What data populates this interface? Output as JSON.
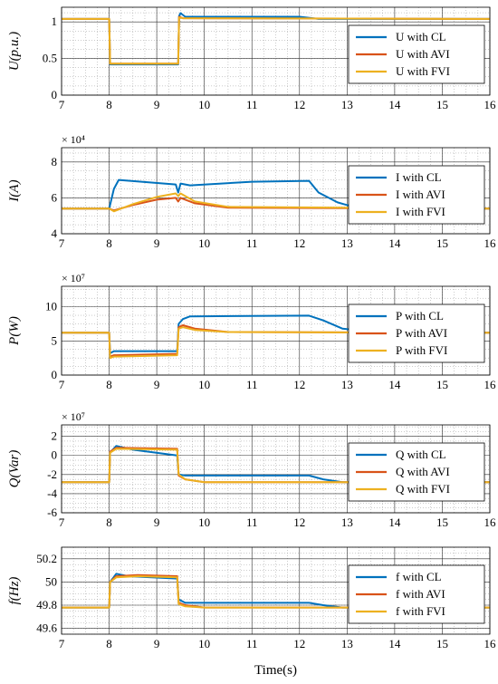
{
  "colors": {
    "CL": "#0072BD",
    "AVI": "#D95319",
    "FVI": "#EDB120"
  },
  "xlabel": "Time(s)",
  "chart_data": [
    {
      "type": "line",
      "ylabel": "U(p.u.)",
      "multiplier": "",
      "xlim": [
        7,
        16
      ],
      "ylim": [
        0,
        1.2
      ],
      "yticks": [
        0,
        0.5,
        1
      ],
      "yticklabels": [
        "0",
        "0.5",
        "1"
      ],
      "legend_position": "right",
      "series": [
        {
          "name": "U with CL",
          "color_key": "CL",
          "x": [
            7,
            8,
            8.02,
            9.45,
            9.47,
            9.5,
            9.6,
            12.0,
            12.4,
            16
          ],
          "y": [
            1.04,
            1.04,
            0.42,
            0.42,
            1.08,
            1.12,
            1.07,
            1.07,
            1.04,
            1.04
          ]
        },
        {
          "name": "U with AVI",
          "color_key": "AVI",
          "x": [
            7,
            8,
            8.02,
            9.45,
            9.47,
            9.55,
            16
          ],
          "y": [
            1.04,
            1.04,
            0.43,
            0.43,
            1.07,
            1.05,
            1.04
          ]
        },
        {
          "name": "U with FVI",
          "color_key": "FVI",
          "x": [
            7,
            8,
            8.02,
            9.45,
            9.47,
            9.55,
            16
          ],
          "y": [
            1.04,
            1.04,
            0.43,
            0.43,
            1.06,
            1.05,
            1.04
          ]
        }
      ]
    },
    {
      "type": "line",
      "ylabel": "I(A)",
      "multiplier": "× 10⁴",
      "xlim": [
        7,
        16
      ],
      "ylim": [
        4,
        8.8
      ],
      "yticks": [
        4,
        6,
        8
      ],
      "yticklabels": [
        "4",
        "6",
        "8"
      ],
      "legend_position": "right",
      "series": [
        {
          "name": "I with CL",
          "color_key": "CL",
          "x": [
            7,
            8,
            8.1,
            8.2,
            9.4,
            9.45,
            9.5,
            9.7,
            11.0,
            12.2,
            12.4,
            12.8,
            13.2,
            16
          ],
          "y": [
            5.4,
            5.4,
            6.5,
            7.0,
            6.75,
            6.3,
            6.8,
            6.7,
            6.9,
            6.95,
            6.3,
            5.75,
            5.45,
            5.4
          ]
        },
        {
          "name": "I with AVI",
          "color_key": "AVI",
          "x": [
            7,
            8,
            8.1,
            8.5,
            9.0,
            9.4,
            9.45,
            9.5,
            9.8,
            10.5,
            16
          ],
          "y": [
            5.4,
            5.4,
            5.3,
            5.6,
            5.9,
            6.0,
            5.8,
            6.0,
            5.7,
            5.45,
            5.4
          ]
        },
        {
          "name": "I with FVI",
          "color_key": "FVI",
          "x": [
            7,
            8,
            8.1,
            8.5,
            9.0,
            9.4,
            9.45,
            9.5,
            9.8,
            10.5,
            16
          ],
          "y": [
            5.4,
            5.4,
            5.25,
            5.65,
            6.05,
            6.25,
            6.1,
            6.25,
            5.8,
            5.5,
            5.4
          ]
        }
      ]
    },
    {
      "type": "line",
      "ylabel": "P(W)",
      "multiplier": "× 10⁷",
      "xlim": [
        7,
        16
      ],
      "ylim": [
        0,
        13
      ],
      "yticks": [
        0,
        5,
        10
      ],
      "yticklabels": [
        "0",
        "5",
        "10"
      ],
      "legend_position": "right",
      "series": [
        {
          "name": "P with CL",
          "color_key": "CL",
          "x": [
            7,
            8,
            8.02,
            8.1,
            9.43,
            9.46,
            9.55,
            9.7,
            12.2,
            12.5,
            12.9,
            13.5,
            16
          ],
          "y": [
            6.2,
            6.2,
            3.2,
            3.5,
            3.5,
            7.5,
            8.2,
            8.6,
            8.7,
            8.0,
            6.8,
            6.3,
            6.2
          ]
        },
        {
          "name": "P with AVI",
          "color_key": "AVI",
          "x": [
            7,
            8,
            8.02,
            8.1,
            9.43,
            9.46,
            9.55,
            9.8,
            10.5,
            16
          ],
          "y": [
            6.2,
            6.2,
            2.7,
            2.9,
            3.1,
            7.0,
            7.3,
            6.8,
            6.3,
            6.2
          ]
        },
        {
          "name": "P with FVI",
          "color_key": "FVI",
          "x": [
            7,
            8,
            8.02,
            8.1,
            9.43,
            9.46,
            9.55,
            9.8,
            10.5,
            16
          ],
          "y": [
            6.2,
            6.2,
            2.5,
            2.7,
            2.9,
            6.8,
            7.0,
            6.6,
            6.3,
            6.2
          ]
        }
      ]
    },
    {
      "type": "line",
      "ylabel": "Q(Var)",
      "multiplier": "× 10⁷",
      "xlim": [
        7,
        16
      ],
      "ylim": [
        -6,
        3.2
      ],
      "yticks": [
        -6,
        -4,
        -2,
        0,
        2
      ],
      "yticklabels": [
        "-6",
        "-4",
        "-2",
        "0",
        "2"
      ],
      "legend_position": "right",
      "series": [
        {
          "name": "Q with CL",
          "color_key": "CL",
          "x": [
            7,
            8,
            8.02,
            8.15,
            8.5,
            9.43,
            9.46,
            9.6,
            12.2,
            12.5,
            12.9,
            16
          ],
          "y": [
            -2.8,
            -2.8,
            0.3,
            1.0,
            0.6,
            0.0,
            -2.0,
            -2.1,
            -2.1,
            -2.5,
            -2.8,
            -2.8
          ]
        },
        {
          "name": "Q with AVI",
          "color_key": "AVI",
          "x": [
            7,
            8,
            8.02,
            8.15,
            9.43,
            9.46,
            9.6,
            10.0,
            16
          ],
          "y": [
            -2.8,
            -2.8,
            0.4,
            0.8,
            0.7,
            -2.1,
            -2.5,
            -2.8,
            -2.8
          ]
        },
        {
          "name": "Q with FVI",
          "color_key": "FVI",
          "x": [
            7,
            8,
            8.02,
            8.15,
            9.43,
            9.46,
            9.6,
            10.0,
            16
          ],
          "y": [
            -2.8,
            -2.8,
            0.3,
            0.7,
            0.6,
            -2.0,
            -2.5,
            -2.8,
            -2.8
          ]
        }
      ]
    },
    {
      "type": "line",
      "ylabel": "f(Hz)",
      "multiplier": "",
      "xlim": [
        7,
        16
      ],
      "ylim": [
        49.55,
        50.3
      ],
      "yticks": [
        49.6,
        49.8,
        50,
        50.2
      ],
      "yticklabels": [
        "49.6",
        "49.8",
        "50",
        "50.2"
      ],
      "legend_position": "right",
      "series": [
        {
          "name": "f with CL",
          "color_key": "CL",
          "x": [
            7,
            8,
            8.02,
            8.15,
            8.4,
            9.43,
            9.46,
            9.6,
            12.2,
            12.5,
            12.9,
            16
          ],
          "y": [
            49.78,
            49.78,
            50.0,
            50.07,
            50.05,
            50.03,
            49.85,
            49.82,
            49.82,
            49.8,
            49.78,
            49.78
          ]
        },
        {
          "name": "f with AVI",
          "color_key": "AVI",
          "x": [
            7,
            8,
            8.02,
            8.15,
            8.6,
            9.43,
            9.46,
            9.6,
            10.0,
            16
          ],
          "y": [
            49.78,
            49.78,
            50.0,
            50.05,
            50.06,
            50.05,
            49.82,
            49.8,
            49.78,
            49.78
          ]
        },
        {
          "name": "f with FVI",
          "color_key": "FVI",
          "x": [
            7,
            8,
            8.02,
            8.15,
            8.6,
            9.43,
            9.46,
            9.6,
            10.0,
            16
          ],
          "y": [
            49.78,
            49.78,
            50.0,
            50.04,
            50.05,
            50.04,
            49.81,
            49.79,
            49.78,
            49.78
          ]
        }
      ]
    }
  ]
}
